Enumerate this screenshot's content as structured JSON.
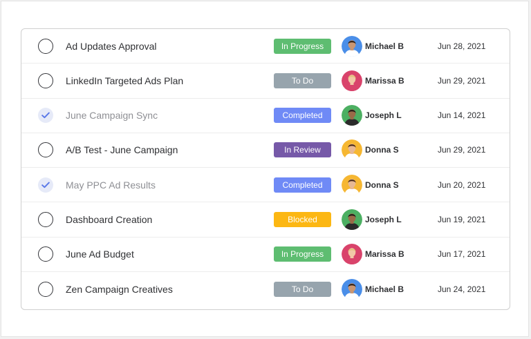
{
  "colors": {
    "in_progress": "#5ebd71",
    "to_do": "#97a4ad",
    "completed": "#6f8af6",
    "in_review": "#7659a8",
    "blocked": "#fcb713"
  },
  "tasks": [
    {
      "title": "Ad Updates Approval",
      "done": false,
      "status": "In Progress",
      "status_key": "in_progress",
      "person": "Michael B",
      "avatar": "michael",
      "date": "Jun 28, 2021"
    },
    {
      "title": "LinkedIn Targeted Ads Plan",
      "done": false,
      "status": "To Do",
      "status_key": "to_do",
      "person": "Marissa B",
      "avatar": "marissa",
      "date": "Jun 29, 2021"
    },
    {
      "title": "June Campaign Sync",
      "done": true,
      "status": "Completed",
      "status_key": "completed",
      "person": "Joseph L",
      "avatar": "joseph",
      "date": "Jun 14, 2021"
    },
    {
      "title": "A/B Test - June Campaign",
      "done": false,
      "status": "In Review",
      "status_key": "in_review",
      "person": "Donna S",
      "avatar": "donna",
      "date": "Jun 29, 2021"
    },
    {
      "title": "May PPC Ad Results",
      "done": true,
      "status": "Completed",
      "status_key": "completed",
      "person": "Donna S",
      "avatar": "donna",
      "date": "Jun 20, 2021"
    },
    {
      "title": "Dashboard Creation",
      "done": false,
      "status": "Blocked",
      "status_key": "blocked",
      "person": "Joseph L",
      "avatar": "joseph",
      "date": "Jun 19, 2021"
    },
    {
      "title": "June Ad Budget",
      "done": false,
      "status": "In Progress",
      "status_key": "in_progress",
      "person": "Marissa B",
      "avatar": "marissa",
      "date": "Jun 17, 2021"
    },
    {
      "title": "Zen Campaign Creatives",
      "done": false,
      "status": "To Do",
      "status_key": "to_do",
      "person": "Michael B",
      "avatar": "michael",
      "date": "Jun 24, 2021"
    }
  ],
  "avatars": {
    "michael": {
      "bg": "#4a8ee8",
      "skin": "#c99672",
      "hair": "#2b1d15",
      "shirt": "#ffffff"
    },
    "marissa": {
      "bg": "#d9436b",
      "skin": "#f1c9a7",
      "hair": "#e2c27a",
      "shirt": "#d9436b"
    },
    "joseph": {
      "bg": "#4caf62",
      "skin": "#9a6a48",
      "hair": "#1e1a17",
      "shirt": "#2b2b2b"
    },
    "donna": {
      "bg": "#f6b732",
      "skin": "#e7b894",
      "hair": "#4a2a18",
      "shirt": "#ffffff"
    }
  }
}
